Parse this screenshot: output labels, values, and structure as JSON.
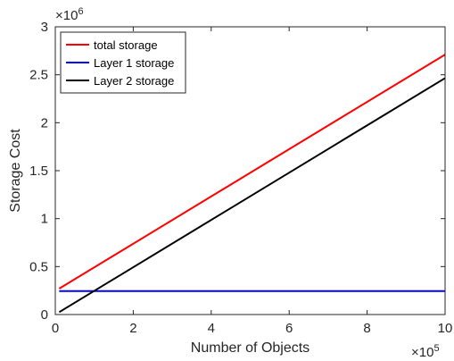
{
  "chart_data": {
    "type": "line",
    "title": "",
    "xlabel": "Number of Objects",
    "ylabel": "Storage Cost",
    "x_multiplier": "×10⁵",
    "x_exponent_base": "×10",
    "x_exponent_power": "5",
    "y_multiplier": "×10⁶",
    "y_exponent_base": "×10",
    "y_exponent_power": "6",
    "xlim": [
      0,
      1000000
    ],
    "ylim": [
      0,
      3000000
    ],
    "x_ticks": [
      0,
      200000,
      400000,
      600000,
      800000,
      1000000
    ],
    "x_tick_labels": [
      "0",
      "2",
      "4",
      "6",
      "8",
      "10"
    ],
    "y_ticks": [
      0,
      500000,
      1000000,
      1500000,
      2000000,
      2500000,
      3000000
    ],
    "y_tick_labels": [
      "0",
      "0.5",
      "1",
      "1.5",
      "2",
      "2.5",
      "3"
    ],
    "grid": false,
    "legend_position": "top-left",
    "series": [
      {
        "name": "total storage",
        "color": "#ff0000",
        "x": [
          10000,
          1000000
        ],
        "y": [
          270000,
          2710000
        ]
      },
      {
        "name": "Layer 1 storage",
        "color": "#0000ff",
        "x": [
          10000,
          1000000
        ],
        "y": [
          245000,
          245000
        ]
      },
      {
        "name": "Layer 2 storage",
        "color": "#000000",
        "x": [
          10000,
          1000000
        ],
        "y": [
          25000,
          2465000
        ]
      }
    ]
  }
}
